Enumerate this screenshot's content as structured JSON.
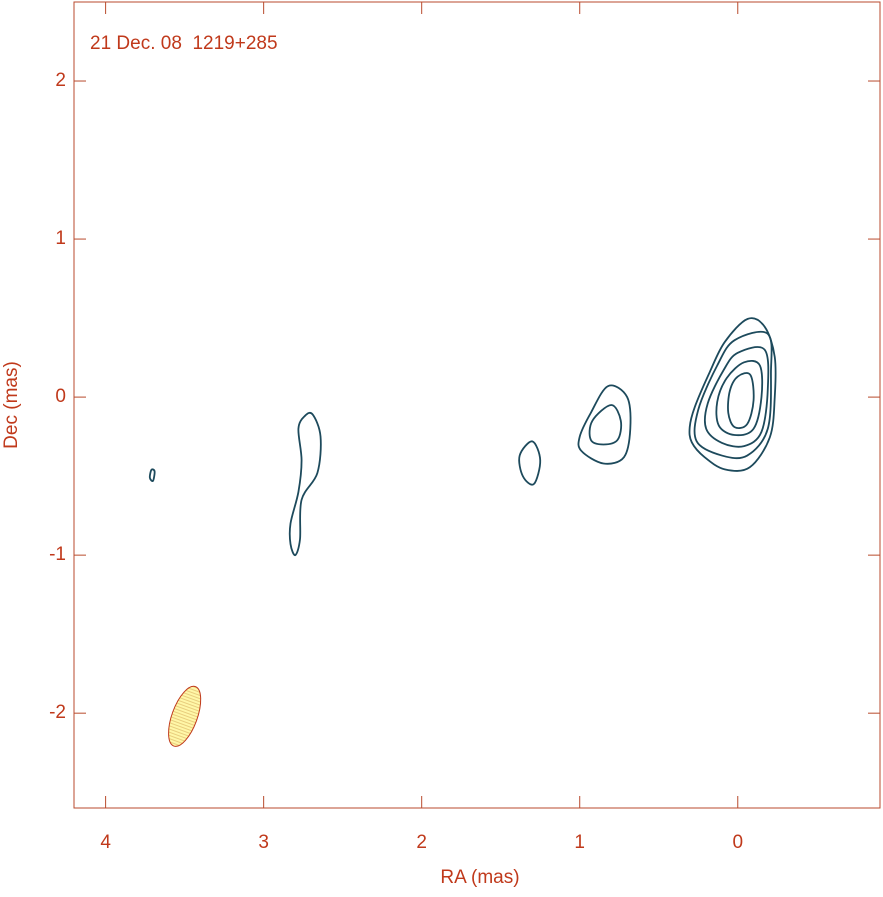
{
  "chart_data": {
    "type": "contour",
    "title": "21 Dec. 08  1219+285",
    "xlabel": "RA (mas)",
    "ylabel": "Dec (mas)",
    "xlim": [
      4.2,
      -0.9
    ],
    "ylim": [
      -2.6,
      2.5
    ],
    "xticks": [
      4,
      3,
      2,
      1,
      0
    ],
    "yticks": [
      2,
      1,
      0,
      -1,
      -2
    ],
    "color": "#1d4a5c",
    "contours": [
      {
        "x": [
          -0.063,
          -0.171,
          -0.234,
          -0.234,
          -0.203,
          -0.076,
          0.082,
          0.209,
          0.291,
          0.304,
          0.272,
          0.177,
          0.082
        ],
        "y": [
          0.495,
          0.444,
          0.254,
          0,
          -0.254,
          -0.444,
          -0.457,
          -0.381,
          -0.286,
          -0.19,
          -0.063,
          0.159,
          0.349
        ]
      },
      {
        "x": [
          -0.19,
          -0.21,
          -0.19,
          -0.06,
          0.1,
          0.26,
          0.25,
          0.13,
          0.02
        ],
        "y": [
          0.4,
          0.15,
          -0.2,
          -0.37,
          -0.37,
          -0.28,
          -0.08,
          0.2,
          0.36
        ]
      },
      {
        "x": [
          -0.17,
          -0.19,
          -0.15,
          -0.04,
          0.1,
          0.2,
          0.19,
          0.09,
          0.0
        ],
        "y": [
          0.3,
          0.05,
          -0.22,
          -0.31,
          -0.29,
          -0.2,
          -0.04,
          0.17,
          0.28
        ]
      },
      {
        "x": [
          -0.14,
          -0.15,
          -0.1,
          0.02,
          0.12,
          0.13,
          0.07,
          -0.04
        ],
        "y": [
          0.2,
          0.0,
          -0.2,
          -0.24,
          -0.18,
          -0.03,
          0.12,
          0.22
        ]
      },
      {
        "x": [
          -0.08,
          -0.1,
          -0.06,
          0.02,
          0.06,
          0.05,
          0.0
        ],
        "y": [
          0.14,
          -0.02,
          -0.17,
          -0.19,
          -0.1,
          0.04,
          0.13
        ]
      },
      {
        "x": [
          0.82,
          0.7,
          0.68,
          0.72,
          0.85,
          0.99,
          1.0,
          0.93
        ],
        "y": [
          0.07,
          0.0,
          -0.2,
          -0.38,
          -0.42,
          -0.34,
          -0.25,
          -0.1
        ]
      },
      {
        "x": [
          0.8,
          0.74,
          0.76,
          0.85,
          0.93,
          0.92
        ],
        "y": [
          -0.05,
          -0.15,
          -0.27,
          -0.3,
          -0.27,
          -0.15
        ]
      },
      {
        "x": [
          1.3,
          1.25,
          1.29,
          1.36,
          1.38
        ],
        "y": [
          -0.28,
          -0.4,
          -0.55,
          -0.5,
          -0.37
        ]
      },
      {
        "x": [
          2.69,
          2.64,
          2.66,
          2.76,
          2.77,
          2.8,
          2.83,
          2.83,
          2.78,
          2.76,
          2.78,
          2.74
        ],
        "y": [
          -0.11,
          -0.25,
          -0.48,
          -0.65,
          -0.9,
          -1.0,
          -0.93,
          -0.8,
          -0.6,
          -0.4,
          -0.2,
          -0.12
        ]
      },
      {
        "x": [
          3.69,
          3.7,
          3.72,
          3.71
        ],
        "y": [
          -0.47,
          -0.53,
          -0.51,
          -0.46
        ]
      }
    ],
    "beam": {
      "x": 3.5,
      "y": -2.02,
      "major": 0.4,
      "minor": 0.16,
      "angle": 20,
      "color": "#fff7a8"
    }
  }
}
